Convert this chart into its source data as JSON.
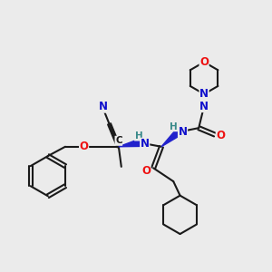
{
  "bg_color": "#ebebeb",
  "bond_color": "#1a1a1a",
  "bond_width": 1.5,
  "atom_colors": {
    "N": "#1010cc",
    "O": "#ee1111",
    "H": "#3a8a8a",
    "C": "#1a1a1a"
  },
  "figsize": [
    3.0,
    3.0
  ],
  "dpi": 100,
  "fs": 8.5,
  "fs_small": 7.5
}
